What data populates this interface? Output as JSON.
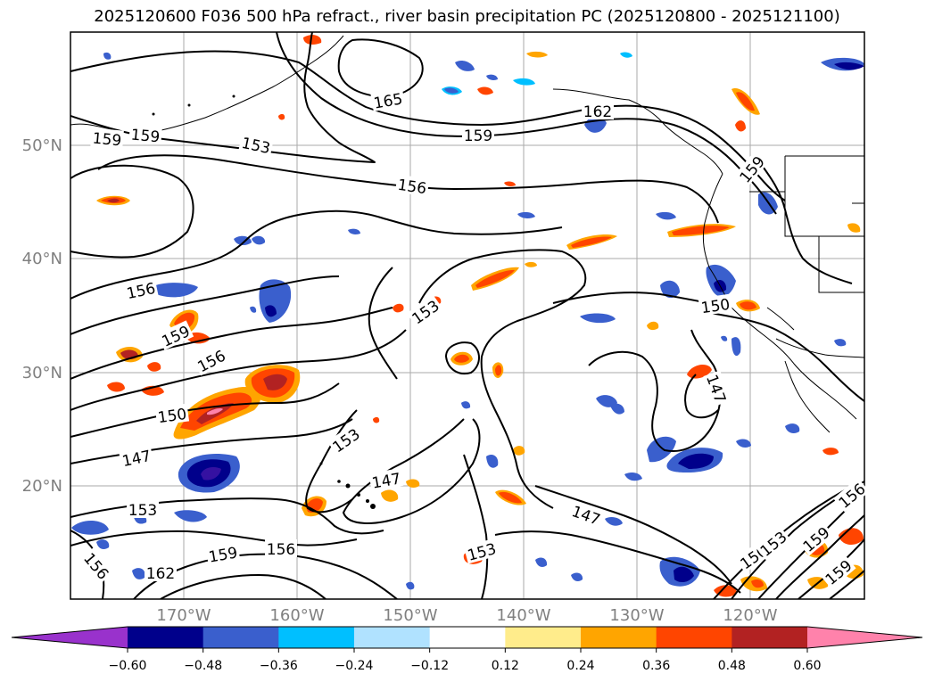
{
  "title": "2025120600 F036 500 hPa refract., river basin precipitation PC (2025120800 - 2025121100)",
  "lat_labels": [
    "50°N",
    "40°N",
    "30°N",
    "20°N"
  ],
  "lon_labels": [
    "170°W",
    "160°W",
    "150°W",
    "140°W",
    "130°W",
    "120°W"
  ],
  "colorbar": {
    "ticks": [
      "−0.60",
      "−0.48",
      "−0.36",
      "−0.24",
      "−0.12",
      "0.12",
      "0.24",
      "0.36",
      "0.48",
      "0.60"
    ],
    "colors": [
      "#9932cc",
      "#00008b",
      "#3a5fcd",
      "#00bfff",
      "#b0e2ff",
      "#ffffff",
      "#ffec8b",
      "#ffa500",
      "#ff4500",
      "#b22222",
      "#ff82ab"
    ]
  },
  "contour_labels": [
    "165",
    "162",
    "159",
    "153",
    "156",
    "159",
    "156",
    "153",
    "159",
    "156",
    "150",
    "147",
    "153",
    "147",
    "153",
    "150",
    "147",
    "147",
    "153",
    "159",
    "156",
    "156",
    "162",
    "159",
    "150",
    "153",
    "159",
    "159",
    "156",
    "159"
  ]
}
